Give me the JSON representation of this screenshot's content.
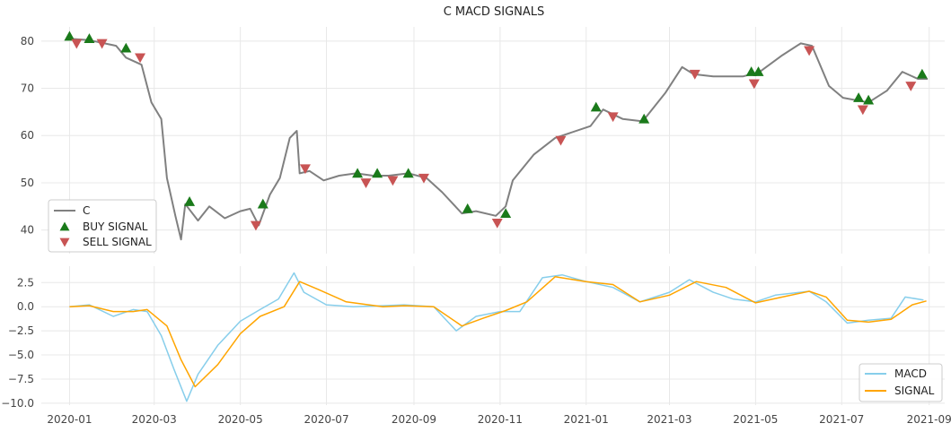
{
  "colors": {
    "price": "#808080",
    "buy": "#1a7a1a",
    "sell": "#c85454",
    "macd": "#87ceeb",
    "signal": "#ffa500",
    "grid": "#e8e8e8"
  },
  "chart_data": [
    {
      "type": "line",
      "title": "C MACD SIGNALS",
      "x_type": "date",
      "xlim": [
        "2019-12-12",
        "2021-09-12"
      ],
      "ylim": [
        35,
        83
      ],
      "y_ticks": [
        40,
        50,
        60,
        70,
        80
      ],
      "grid": true,
      "legend": "bottom-left",
      "series": [
        {
          "name": "C",
          "kind": "line",
          "x": [
            "2020-01-01",
            "2020-01-15",
            "2020-02-03",
            "2020-02-10",
            "2020-02-21",
            "2020-02-28",
            "2020-03-06",
            "2020-03-10",
            "2020-03-16",
            "2020-03-20",
            "2020-03-23",
            "2020-04-01",
            "2020-04-09",
            "2020-04-20",
            "2020-05-01",
            "2020-05-08",
            "2020-05-14",
            "2020-05-22",
            "2020-05-29",
            "2020-06-05",
            "2020-06-10",
            "2020-06-12",
            "2020-06-19",
            "2020-06-29",
            "2020-07-10",
            "2020-07-22",
            "2020-08-03",
            "2020-08-14",
            "2020-08-28",
            "2020-09-10",
            "2020-09-21",
            "2020-10-05",
            "2020-10-15",
            "2020-10-29",
            "2020-11-05",
            "2020-11-10",
            "2020-11-25",
            "2020-12-10",
            "2021-01-04",
            "2021-01-13",
            "2021-01-27",
            "2021-02-10",
            "2021-02-26",
            "2021-03-10",
            "2021-03-18",
            "2021-04-01",
            "2021-04-22",
            "2021-05-04",
            "2021-05-20",
            "2021-06-02",
            "2021-06-10",
            "2021-06-22",
            "2021-07-02",
            "2021-07-20",
            "2021-08-02",
            "2021-08-13",
            "2021-08-24",
            "2021-08-31"
          ],
          "y": [
            80.5,
            80.2,
            79.0,
            76.5,
            75.0,
            67.0,
            63.5,
            51.0,
            43.0,
            38.0,
            45.5,
            42.0,
            45.0,
            42.5,
            44.0,
            44.5,
            41.0,
            47.5,
            51.0,
            59.5,
            61.0,
            52.0,
            52.5,
            50.5,
            51.5,
            52.0,
            51.5,
            51.5,
            52.0,
            51.0,
            48.0,
            43.5,
            44.0,
            43.0,
            45.0,
            50.5,
            56.0,
            59.5,
            62.0,
            65.5,
            63.5,
            63.0,
            69.0,
            74.5,
            73.0,
            72.5,
            72.5,
            73.5,
            77.0,
            79.5,
            79.0,
            70.5,
            68.0,
            67.0,
            69.5,
            73.5,
            72.0,
            72.0
          ]
        },
        {
          "name": "BUY SIGNAL",
          "kind": "marker-up",
          "x": [
            "2020-01-01",
            "2020-01-15",
            "2020-02-10",
            "2020-03-26",
            "2020-05-17",
            "2020-07-23",
            "2020-08-06",
            "2020-08-28",
            "2020-10-09",
            "2020-11-05",
            "2021-01-08",
            "2021-02-11",
            "2021-04-28",
            "2021-05-03",
            "2021-07-13",
            "2021-07-20",
            "2021-08-27"
          ],
          "y": [
            81.0,
            80.5,
            78.5,
            46.0,
            45.5,
            52.0,
            52.0,
            52.0,
            44.5,
            43.5,
            66.0,
            63.5,
            73.5,
            73.5,
            68.0,
            67.5,
            73.0
          ]
        },
        {
          "name": "SELL SIGNAL",
          "kind": "marker-down",
          "x": [
            "2020-01-06",
            "2020-01-24",
            "2020-02-20",
            "2020-05-12",
            "2020-06-16",
            "2020-07-29",
            "2020-08-17",
            "2020-09-08",
            "2020-10-30",
            "2020-12-14",
            "2021-01-20",
            "2021-03-19",
            "2021-04-30",
            "2021-06-08",
            "2021-07-16",
            "2021-08-19"
          ],
          "y": [
            79.5,
            79.5,
            76.5,
            41.0,
            53.0,
            50.0,
            50.5,
            51.0,
            41.5,
            59.0,
            64.0,
            73.0,
            71.0,
            78.0,
            65.5,
            70.5
          ]
        }
      ]
    },
    {
      "type": "line",
      "title": "",
      "x_type": "date",
      "xlim": [
        "2019-12-12",
        "2021-09-12"
      ],
      "ylim": [
        -10.2,
        4.2
      ],
      "y_ticks": [
        -10.0,
        -7.5,
        -5.0,
        -2.5,
        0.0,
        2.5
      ],
      "x_ticks": [
        "2020-01",
        "2020-03",
        "2020-05",
        "2020-07",
        "2020-09",
        "2020-11",
        "2021-01",
        "2021-03",
        "2021-05",
        "2021-07",
        "2021-09"
      ],
      "grid": true,
      "legend": "bottom-right",
      "series": [
        {
          "name": "MACD",
          "x": [
            "2020-01-01",
            "2020-01-15",
            "2020-02-01",
            "2020-02-15",
            "2020-02-25",
            "2020-03-06",
            "2020-03-15",
            "2020-03-24",
            "2020-04-01",
            "2020-04-15",
            "2020-05-01",
            "2020-05-15",
            "2020-05-28",
            "2020-06-08",
            "2020-06-15",
            "2020-07-01",
            "2020-07-20",
            "2020-08-10",
            "2020-08-25",
            "2020-09-15",
            "2020-10-01",
            "2020-10-15",
            "2020-11-01",
            "2020-11-15",
            "2020-12-01",
            "2020-12-15",
            "2021-01-01",
            "2021-01-20",
            "2021-02-08",
            "2021-03-01",
            "2021-03-15",
            "2021-04-01",
            "2021-04-15",
            "2021-05-01",
            "2021-05-15",
            "2021-06-08",
            "2021-06-20",
            "2021-07-05",
            "2021-07-20",
            "2021-08-05",
            "2021-08-15",
            "2021-08-28"
          ],
          "y": [
            0.0,
            0.2,
            -1.0,
            -0.3,
            -0.5,
            -3.0,
            -6.5,
            -9.8,
            -7.0,
            -4.0,
            -1.5,
            -0.3,
            0.8,
            3.5,
            1.5,
            0.2,
            0.0,
            0.1,
            0.2,
            0.0,
            -2.5,
            -1.0,
            -0.5,
            -0.5,
            3.0,
            3.3,
            2.6,
            2.0,
            0.5,
            1.5,
            2.8,
            1.5,
            0.8,
            0.5,
            1.2,
            1.6,
            0.5,
            -1.7,
            -1.4,
            -1.2,
            1.0,
            0.7
          ]
        },
        {
          "name": "SIGNAL",
          "x": [
            "2020-01-01",
            "2020-01-15",
            "2020-02-01",
            "2020-02-15",
            "2020-02-25",
            "2020-03-10",
            "2020-03-20",
            "2020-03-30",
            "2020-04-15",
            "2020-05-01",
            "2020-05-15",
            "2020-06-01",
            "2020-06-12",
            "2020-06-25",
            "2020-07-15",
            "2020-08-10",
            "2020-08-25",
            "2020-09-15",
            "2020-10-05",
            "2020-10-20",
            "2020-11-05",
            "2020-11-20",
            "2020-12-10",
            "2021-01-01",
            "2021-01-20",
            "2021-02-08",
            "2021-03-01",
            "2021-03-20",
            "2021-04-10",
            "2021-05-01",
            "2021-05-20",
            "2021-06-08",
            "2021-06-20",
            "2021-07-05",
            "2021-07-20",
            "2021-08-05",
            "2021-08-20",
            "2021-08-30"
          ],
          "y": [
            0.0,
            0.1,
            -0.5,
            -0.5,
            -0.3,
            -2.0,
            -5.5,
            -8.3,
            -6.0,
            -2.8,
            -1.0,
            0.0,
            2.6,
            1.8,
            0.5,
            0.0,
            0.1,
            0.0,
            -2.0,
            -1.2,
            -0.4,
            0.5,
            3.1,
            2.6,
            2.3,
            0.5,
            1.2,
            2.6,
            2.0,
            0.4,
            1.0,
            1.6,
            1.0,
            -1.4,
            -1.6,
            -1.3,
            0.2,
            0.6
          ]
        }
      ]
    }
  ]
}
